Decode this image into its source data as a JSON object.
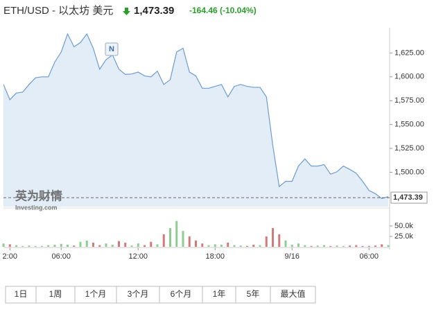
{
  "header": {
    "title": "ETH/USD - 以太坊 美元",
    "price": "1,473.39",
    "change": "-164.46",
    "change_pct": "(-10.04%)"
  },
  "chart_data": {
    "type": "line",
    "categories": [
      null,
      "2:00",
      null,
      null,
      null,
      null,
      null,
      null,
      null,
      "06:00",
      null,
      null,
      null,
      null,
      null,
      null,
      null,
      null,
      null,
      null,
      null,
      "12:00",
      null,
      null,
      null,
      null,
      null,
      null,
      null,
      null,
      null,
      null,
      null,
      "18:00",
      null,
      null,
      null,
      null,
      null,
      null,
      null,
      null,
      null,
      null,
      null,
      "9/16",
      null,
      null,
      null,
      null,
      null,
      null,
      null,
      null,
      null,
      null,
      null,
      "06:00",
      null,
      null,
      null
    ],
    "series": [
      {
        "color": "#6b9bd1",
        "values": [
          1592,
          1576,
          1583,
          1584,
          1592,
          1599,
          1600,
          1600,
          1615.5,
          1626,
          1645,
          1631.5,
          1636,
          1645,
          1630,
          1608,
          1618,
          1623,
          1608,
          1602.5,
          1603,
          1605,
          1601,
          1600,
          1606,
          1592,
          1597,
          1626,
          1630,
          1605,
          1601,
          1588,
          1588,
          1590,
          1592,
          1579,
          1590,
          1592,
          1590,
          1589,
          1589,
          1579,
          1528,
          1485,
          1490.5,
          1490.5,
          1506.5,
          1514,
          1506.5,
          1506.5,
          1508,
          1498,
          1500.5,
          1506.5,
          1503,
          1499,
          1490.5,
          1481,
          1477.5,
          1472.5,
          1474.5
        ]
      }
    ],
    "ylim": [
      1464,
      1650
    ],
    "yticks": [
      {
        "value": 1500,
        "label": "1,500.00"
      },
      {
        "value": 1525,
        "label": "1,525.00"
      },
      {
        "value": 1550,
        "label": "1,550.00"
      },
      {
        "value": 1575,
        "label": "1,575.00"
      },
      {
        "value": 1600,
        "label": "1,600.00"
      },
      {
        "value": 1625,
        "label": "1,625.00"
      }
    ],
    "last": {
      "value": 1473.39,
      "label": "1,473.39"
    },
    "volume": {
      "values": [
        8000,
        6000,
        4000,
        2000,
        3000,
        2000,
        2000,
        4000,
        5000,
        7000,
        5000,
        3000,
        12000,
        15000,
        10000,
        4000,
        8000,
        5000,
        14000,
        10000,
        3000,
        8000,
        4000,
        12000,
        6000,
        30000,
        45000,
        62000,
        38000,
        25000,
        15000,
        8000,
        4000,
        6000,
        5000,
        10000,
        4000,
        3000,
        2000,
        5000,
        4000,
        25000,
        45000,
        30000,
        15000,
        5000,
        8000,
        4000,
        2000,
        3000,
        4000,
        2000,
        3000,
        2000,
        3000,
        4000,
        2000,
        2000,
        3000,
        6000,
        4000
      ],
      "ylim": [
        0,
        93000
      ],
      "yticks": [
        {
          "value": 25000,
          "label": "25.0k"
        },
        {
          "value": 50000,
          "label": "50.0k"
        }
      ],
      "up_color": "#8fcc8f",
      "down_color": "#d27a7a"
    },
    "annotation": "N",
    "watermark": {
      "brand": "英为财情",
      "site": "Investing.com"
    }
  },
  "buttons": [
    "1日",
    "1周",
    "1个月",
    "3个月",
    "6个月",
    "1年",
    "5年",
    "最大值"
  ]
}
